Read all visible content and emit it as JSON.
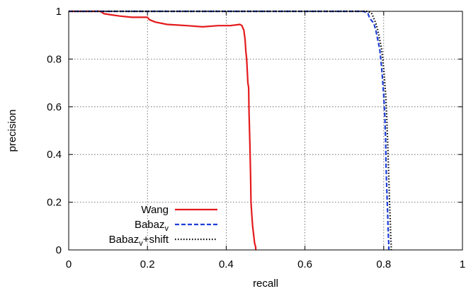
{
  "chart_data": {
    "type": "line",
    "title": "",
    "xlabel": "recall",
    "ylabel": "precision",
    "xlim": [
      0,
      1
    ],
    "ylim": [
      0,
      1
    ],
    "x_ticks": [
      "0",
      "0.2",
      "0.4",
      "0.6",
      "0.8",
      "1"
    ],
    "y_ticks": [
      "0",
      "0.2",
      "0.4",
      "0.6",
      "0.8",
      "1"
    ],
    "grid": true,
    "legend_position": "bottom-left",
    "series": [
      {
        "name": "Wang",
        "subscript": "",
        "suffix": "",
        "color": "#e41a1c",
        "style": "solid",
        "points": [
          [
            0,
            1
          ],
          [
            0.08,
            1
          ],
          [
            0.09,
            0.99
          ],
          [
            0.11,
            0.985
          ],
          [
            0.13,
            0.98
          ],
          [
            0.16,
            0.975
          ],
          [
            0.2,
            0.975
          ],
          [
            0.205,
            0.965
          ],
          [
            0.22,
            0.955
          ],
          [
            0.25,
            0.945
          ],
          [
            0.3,
            0.94
          ],
          [
            0.34,
            0.935
          ],
          [
            0.38,
            0.94
          ],
          [
            0.41,
            0.94
          ],
          [
            0.435,
            0.945
          ],
          [
            0.44,
            0.94
          ],
          [
            0.445,
            0.92
          ],
          [
            0.448,
            0.88
          ],
          [
            0.45,
            0.83
          ],
          [
            0.452,
            0.8
          ],
          [
            0.455,
            0.7
          ],
          [
            0.457,
            0.68
          ],
          [
            0.458,
            0.58
          ],
          [
            0.46,
            0.45
          ],
          [
            0.462,
            0.3
          ],
          [
            0.463,
            0.2
          ],
          [
            0.465,
            0.15
          ],
          [
            0.467,
            0.1
          ],
          [
            0.47,
            0.06
          ],
          [
            0.472,
            0.03
          ],
          [
            0.475,
            0.01
          ],
          [
            0.475,
            0
          ]
        ]
      },
      {
        "name": "Babaz",
        "subscript": "v",
        "suffix": "",
        "color": "#1f3fd6",
        "style": "dashed",
        "points": [
          [
            0,
            1
          ],
          [
            0.67,
            1
          ],
          [
            0.75,
            1
          ],
          [
            0.76,
            0.99
          ],
          [
            0.765,
            0.97
          ],
          [
            0.775,
            0.95
          ],
          [
            0.78,
            0.92
          ],
          [
            0.785,
            0.88
          ],
          [
            0.79,
            0.84
          ],
          [
            0.795,
            0.76
          ],
          [
            0.8,
            0.65
          ],
          [
            0.803,
            0.55
          ],
          [
            0.805,
            0.45
          ],
          [
            0.806,
            0.35
          ],
          [
            0.808,
            0.25
          ],
          [
            0.809,
            0.2
          ],
          [
            0.81,
            0.15
          ],
          [
            0.811,
            0.1
          ],
          [
            0.812,
            0.05
          ],
          [
            0.813,
            0.02
          ],
          [
            0.813,
            0
          ]
        ]
      },
      {
        "name": "Babaz",
        "subscript": "v",
        "suffix": "+shift",
        "color": "#000000",
        "style": "dotted",
        "points": [
          [
            0,
            1
          ],
          [
            0.67,
            1
          ],
          [
            0.76,
            1
          ],
          [
            0.77,
            0.99
          ],
          [
            0.775,
            0.97
          ],
          [
            0.78,
            0.95
          ],
          [
            0.785,
            0.92
          ],
          [
            0.79,
            0.88
          ],
          [
            0.795,
            0.84
          ],
          [
            0.8,
            0.76
          ],
          [
            0.805,
            0.65
          ],
          [
            0.808,
            0.55
          ],
          [
            0.81,
            0.45
          ],
          [
            0.812,
            0.35
          ],
          [
            0.814,
            0.25
          ],
          [
            0.815,
            0.2
          ],
          [
            0.816,
            0.15
          ],
          [
            0.817,
            0.1
          ],
          [
            0.818,
            0.05
          ],
          [
            0.819,
            0.02
          ],
          [
            0.819,
            0
          ]
        ]
      }
    ]
  }
}
